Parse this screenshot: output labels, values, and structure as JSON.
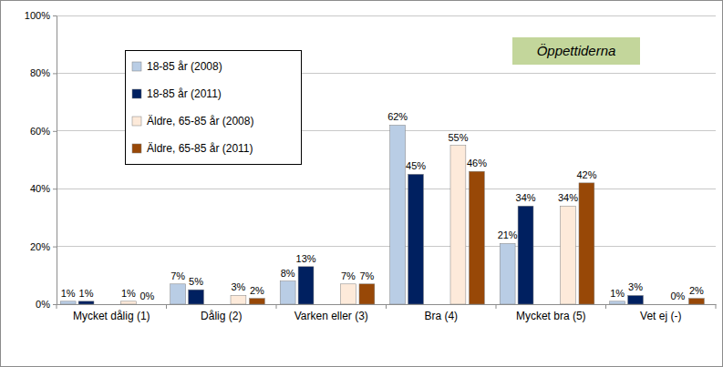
{
  "chart_data": {
    "type": "bar",
    "title": "Öppettiderna",
    "categories": [
      "Mycket dålig (1)",
      "Dålig (2)",
      "Varken eller (3)",
      "Bra (4)",
      "Mycket bra (5)",
      "Vet ej (-)"
    ],
    "series": [
      {
        "name": "18-85 år (2008)",
        "color": "#b9cde5",
        "values": [
          1,
          7,
          8,
          62,
          21,
          1
        ],
        "value_labels": [
          "1%",
          "7%",
          "8%",
          "62%",
          "21%",
          "1%"
        ]
      },
      {
        "name": "18-85 år (2011)",
        "color": "#002060",
        "values": [
          1,
          5,
          13,
          45,
          34,
          3
        ],
        "value_labels": [
          "1%",
          "5%",
          "13%",
          "45%",
          "34%",
          "3%"
        ]
      },
      {
        "name": "Äldre, 65-85 år (2008)",
        "color": "#fdeada",
        "values": [
          1,
          3,
          7,
          55,
          34,
          0
        ],
        "value_labels": [
          "1%",
          "3%",
          "7%",
          "55%",
          "34%",
          "0%"
        ]
      },
      {
        "name": "Äldre, 65-85 år (2011)",
        "color": "#984807",
        "values": [
          0,
          2,
          7,
          46,
          42,
          2
        ],
        "value_labels": [
          "0%",
          "2%",
          "7%",
          "46%",
          "42%",
          "2%"
        ]
      }
    ],
    "ylim": [
      0,
      100
    ],
    "yticks": [
      {
        "value": 0,
        "label": "0%"
      },
      {
        "value": 20,
        "label": "20%"
      },
      {
        "value": 40,
        "label": "40%"
      },
      {
        "value": 60,
        "label": "60%"
      },
      {
        "value": 80,
        "label": "80%"
      },
      {
        "value": 100,
        "label": "100%"
      }
    ],
    "grid": true,
    "legend": "upper left",
    "data_labels": true
  }
}
